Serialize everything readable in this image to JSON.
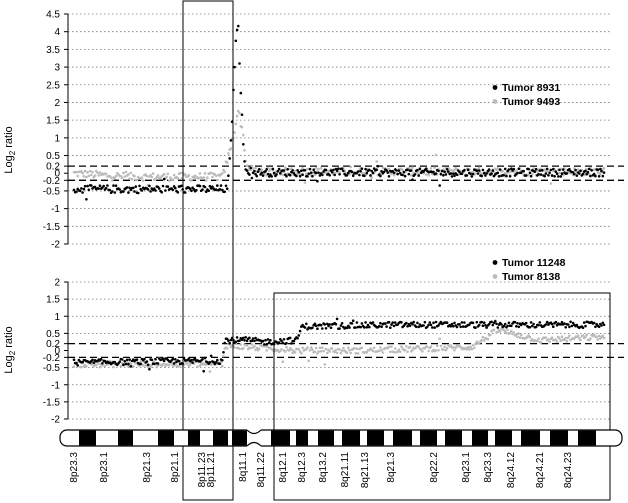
{
  "chart_data": [
    {
      "type": "scatter",
      "ylabel": "Log",
      "ylabel_sub": "2",
      "ylabel_suffix": " ratio",
      "ylim": [
        -2,
        4.5
      ],
      "yticks": [
        "4.5",
        "4",
        "3.5",
        "3",
        "2.5",
        "2",
        "1.5",
        "1",
        "0.5",
        "0.2",
        "0",
        "-0.2",
        "-0.5",
        "-1",
        "-1.5",
        "-2"
      ],
      "threshold_lines": [
        0.2,
        -0.2
      ],
      "series": [
        {
          "name": "Tumor 8931",
          "color": "#000000",
          "profile": [
            [
              0,
              -0.45
            ],
            [
              0.29,
              -0.45
            ],
            [
              0.295,
              0.6
            ],
            [
              0.3,
              2.0
            ],
            [
              0.305,
              3.8
            ],
            [
              0.31,
              4.1
            ],
            [
              0.315,
              2.2
            ],
            [
              0.32,
              0.6
            ],
            [
              0.325,
              0.1
            ],
            [
              0.34,
              0.02
            ],
            [
              1.0,
              0.02
            ]
          ]
        },
        {
          "name": "Tumor 9493",
          "color": "#bbbbbb",
          "profile": [
            [
              0,
              0.0
            ],
            [
              0.1,
              -0.1
            ],
            [
              0.28,
              -0.1
            ],
            [
              0.29,
              0.4
            ],
            [
              0.3,
              1.0
            ],
            [
              0.31,
              1.8
            ],
            [
              0.32,
              1.0
            ],
            [
              0.325,
              0.2
            ],
            [
              0.34,
              0.05
            ],
            [
              1.0,
              0.05
            ]
          ]
        }
      ]
    },
    {
      "type": "scatter",
      "ylabel": "Log",
      "ylabel_sub": "2",
      "ylabel_suffix": " ratio",
      "ylim": [
        -2,
        2
      ],
      "yticks": [
        "2",
        "1.5",
        "1",
        "0.5",
        "0.2",
        "0",
        "-0.2",
        "-0.5",
        "-1",
        "-1.5",
        "-2"
      ],
      "threshold_lines": [
        0.2,
        -0.2
      ],
      "series": [
        {
          "name": "Tumor 11248",
          "color": "#000000",
          "profile": [
            [
              0,
              -0.35
            ],
            [
              0.28,
              -0.3
            ],
            [
              0.285,
              0.3
            ],
            [
              0.33,
              0.3
            ],
            [
              0.36,
              0.25
            ],
            [
              0.42,
              0.3
            ],
            [
              0.43,
              0.7
            ],
            [
              0.6,
              0.75
            ],
            [
              1.0,
              0.75
            ]
          ]
        },
        {
          "name": "Tumor 8138",
          "color": "#bbbbbb",
          "profile": [
            [
              0,
              -0.4
            ],
            [
              0.28,
              -0.4
            ],
            [
              0.285,
              0.15
            ],
            [
              0.33,
              0.1
            ],
            [
              0.42,
              0.0
            ],
            [
              0.55,
              0.0
            ],
            [
              0.75,
              0.1
            ],
            [
              0.8,
              0.6
            ],
            [
              0.88,
              0.3
            ],
            [
              1.0,
              0.4
            ]
          ]
        }
      ]
    }
  ],
  "cytobands": [
    "8p23.3",
    "8p23.1",
    "8p21.3",
    "8p21.1",
    "8p11.23",
    "8p11.21",
    "8q11.1",
    "8q11.22",
    "8q12.1",
    "8q12.3",
    "8q13.2",
    "8q21.11",
    "8q21.13",
    "8q21.3",
    "8q22.2",
    "8q23.1",
    "8q23.3",
    "8q24.12",
    "8q24.21",
    "8q24.23"
  ]
}
